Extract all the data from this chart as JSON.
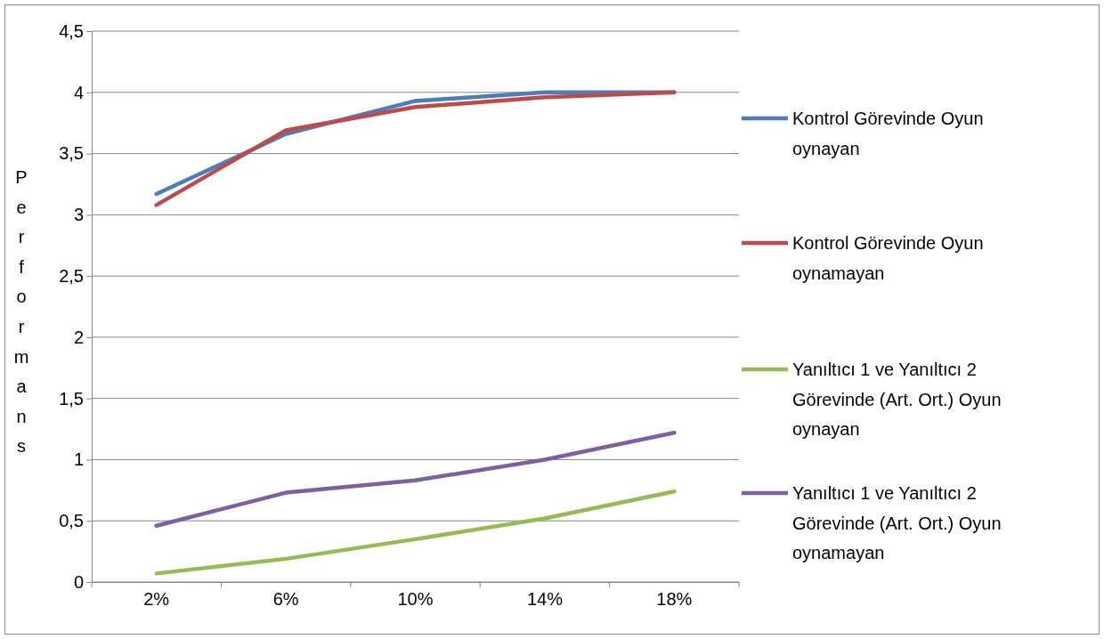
{
  "chart_data": {
    "type": "line",
    "ylabel": "Performans",
    "categories": [
      "2%",
      "6%",
      "10%",
      "14%",
      "18%"
    ],
    "series": [
      {
        "name": "Kontrol Görevinde Oyun oynayan",
        "color": "#4a7ebb",
        "values": [
          3.17,
          3.66,
          3.93,
          4.0,
          4.0
        ]
      },
      {
        "name": "Kontrol Görevinde Oyun oynamayan",
        "color": "#be4b48",
        "values": [
          3.08,
          3.69,
          3.88,
          3.96,
          4.0
        ]
      },
      {
        "name": "Yanıltıcı 1 ve Yanıltıcı 2 Görevinde (Art. Ort.) Oyun oynayan",
        "color": "#98b954",
        "values": [
          0.07,
          0.19,
          0.35,
          0.52,
          0.74
        ]
      },
      {
        "name": "Yanıltıcı 1 ve Yanıltıcı 2 Görevinde (Art. Ort.) Oyun oynamayan",
        "color": "#7d60a0",
        "values": [
          0.46,
          0.73,
          0.83,
          1.0,
          1.22
        ]
      }
    ],
    "ylim": [
      0,
      4.5
    ],
    "yticks": [
      0,
      {
        "value": 0.5,
        "label": "0,5"
      },
      1,
      {
        "value": 1.5,
        "label": "1,5"
      },
      2,
      {
        "value": 2.5,
        "label": "2,5"
      },
      3,
      {
        "value": 3.5,
        "label": "3,5"
      },
      4,
      {
        "value": 4.5,
        "label": "4,5"
      }
    ],
    "grid": "y",
    "legend": "right",
    "marker": "none",
    "line_style": "solid"
  }
}
